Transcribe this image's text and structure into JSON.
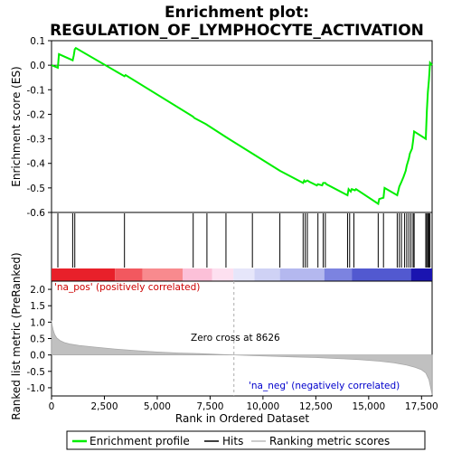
{
  "chart_data": {
    "type": "line",
    "title_line1": "Enrichment plot:",
    "title_line2": "REGULATION_OF_LYMPHOCYTE_ACTIVATION",
    "top_panel": {
      "ylabel": "Enrichment score (ES)",
      "ylim": [
        -0.6,
        0.1
      ],
      "yticks": [
        "0.1",
        "0.0",
        "-0.1",
        "-0.2",
        "-0.3",
        "-0.4",
        "-0.5",
        "-0.6"
      ],
      "ytick_values": [
        0.1,
        0.0,
        -0.1,
        -0.2,
        -0.3,
        -0.4,
        -0.5,
        -0.6
      ],
      "series": {
        "name": "Enrichment profile",
        "color": "#00ee00",
        "x": [
          0,
          300,
          350,
          1000,
          1050,
          1100,
          1150,
          3450,
          3500,
          6700,
          6750,
          7300,
          8200,
          9500,
          10800,
          11900,
          11950,
          12000,
          12100,
          12200,
          12550,
          12600,
          12800,
          12850,
          12950,
          13000,
          14000,
          14050,
          14150,
          14200,
          14350,
          14400,
          15450,
          15500,
          15700,
          15750,
          16350,
          16450,
          16550,
          16650,
          16750,
          16800,
          16900,
          16950,
          17050,
          17100,
          17150,
          17700,
          17750,
          17800,
          17850,
          17900,
          18000
        ],
        "y": [
          0.0,
          -0.01,
          0.045,
          0.02,
          0.04,
          0.065,
          0.07,
          -0.045,
          -0.04,
          -0.21,
          -0.215,
          -0.24,
          -0.29,
          -0.36,
          -0.43,
          -0.48,
          -0.47,
          -0.475,
          -0.47,
          -0.475,
          -0.49,
          -0.485,
          -0.49,
          -0.48,
          -0.48,
          -0.485,
          -0.53,
          -0.505,
          -0.515,
          -0.505,
          -0.51,
          -0.505,
          -0.565,
          -0.545,
          -0.54,
          -0.5,
          -0.53,
          -0.495,
          -0.475,
          -0.455,
          -0.43,
          -0.41,
          -0.38,
          -0.36,
          -0.34,
          -0.31,
          -0.27,
          -0.3,
          -0.185,
          -0.11,
          -0.06,
          0.01,
          0.0
        ]
      }
    },
    "hits": {
      "x": [
        300,
        1000,
        1100,
        3450,
        6700,
        7350,
        8250,
        9500,
        10800,
        11900,
        12000,
        12100,
        12600,
        12850,
        12950,
        14000,
        14100,
        14300,
        15450,
        15700,
        16350,
        16450,
        16550,
        16700,
        16800,
        16900,
        17000,
        17100,
        17150,
        17700,
        17750,
        17800,
        17850,
        17900
      ]
    },
    "color_bar": {
      "segments": [
        {
          "start": 0,
          "end": 3000,
          "color": "#e8202a"
        },
        {
          "start": 3000,
          "end": 4300,
          "color": "#f2585f"
        },
        {
          "start": 4300,
          "end": 6200,
          "color": "#f88a8e"
        },
        {
          "start": 6200,
          "end": 7600,
          "color": "#fcc0d8"
        },
        {
          "start": 7600,
          "end": 8600,
          "color": "#fde0f0"
        },
        {
          "start": 8600,
          "end": 9600,
          "color": "#e6e6fa"
        },
        {
          "start": 9600,
          "end": 10800,
          "color": "#cfd2f5"
        },
        {
          "start": 10800,
          "end": 12900,
          "color": "#b4b8ef"
        },
        {
          "start": 12900,
          "end": 14200,
          "color": "#7c83e0"
        },
        {
          "start": 14200,
          "end": 17000,
          "color": "#5259d0"
        },
        {
          "start": 17000,
          "end": 18000,
          "color": "#1a14b0"
        }
      ]
    },
    "bottom_panel": {
      "ylabel": "Ranked list metric (PreRanked)",
      "ylim": [
        -1.25,
        2.25
      ],
      "yticks": [
        "2.0",
        "1.5",
        "1.0",
        "0.5",
        "0.0",
        "-0.5",
        "-1.0"
      ],
      "ytick_values": [
        2.0,
        1.5,
        1.0,
        0.5,
        0.0,
        -0.5,
        -1.0
      ],
      "metric": {
        "name": "Ranking metric scores",
        "x": [
          0,
          30,
          80,
          150,
          250,
          400,
          600,
          900,
          1300,
          2000,
          3000,
          4000,
          5000,
          6000,
          7000,
          8000,
          8626,
          9500,
          10500,
          11500,
          12500,
          13500,
          14500,
          15500,
          16200,
          16800,
          17200,
          17500,
          17700,
          17850,
          17950,
          18000
        ],
        "y": [
          1.05,
          0.9,
          0.75,
          0.62,
          0.52,
          0.44,
          0.38,
          0.33,
          0.29,
          0.24,
          0.18,
          0.13,
          0.09,
          0.06,
          0.04,
          0.015,
          0.0,
          -0.02,
          -0.04,
          -0.06,
          -0.08,
          -0.11,
          -0.14,
          -0.19,
          -0.24,
          -0.31,
          -0.38,
          -0.45,
          -0.55,
          -0.75,
          -1.05,
          -1.22
        ]
      },
      "pos_label": "'na_pos' (positively correlated)",
      "neg_label": "'na_neg' (negatively correlated)",
      "zero_cross_label": "Zero cross at 8626",
      "zero_cross": 8626
    },
    "xlabel": "Rank in Ordered Dataset",
    "xlim": [
      0,
      18000
    ],
    "xticks": [
      "0",
      "2,500",
      "5,000",
      "7,500",
      "10,000",
      "12,500",
      "15,000",
      "17,500"
    ],
    "xtick_values": [
      0,
      2500,
      5000,
      7500,
      10000,
      12500,
      15000,
      17500
    ],
    "legend": {
      "items": [
        "Enrichment profile",
        "Hits",
        "Ranking metric scores"
      ]
    }
  }
}
